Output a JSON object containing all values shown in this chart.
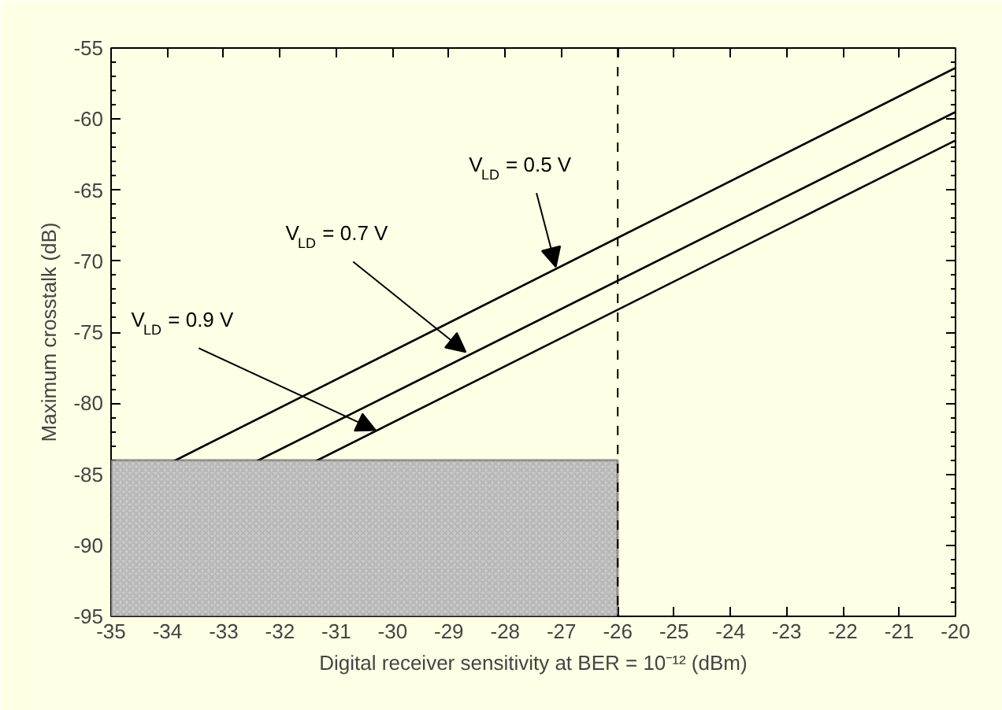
{
  "chart_data": {
    "type": "line",
    "xlabel": "Digital receiver sensitivity at BER = 10⁻¹² (dBm)",
    "ylabel": "Maximum crosstalk (dB)",
    "x": [
      -35,
      -20
    ],
    "series": [
      {
        "color": "#000000",
        "values": [
          -86.3,
          -56.4
        ]
      },
      {
        "color": "#000000",
        "values": [
          -89.2,
          -59.5
        ]
      },
      {
        "color": "#000000",
        "values": [
          -91.3,
          -61.5
        ]
      }
    ],
    "xlim": [
      -35,
      -20
    ],
    "xticks": [
      -35,
      -34,
      -33,
      -32,
      -31,
      -30,
      -29,
      -28,
      -27,
      -26,
      -25,
      -24,
      -23,
      -22,
      -21,
      -20
    ],
    "ylim": [
      -95,
      -55
    ],
    "yticks": [
      -95,
      -90,
      -85,
      -80,
      -75,
      -70,
      -65,
      -60,
      -55
    ],
    "ref_lines": [
      {
        "axis": "x",
        "value": -26,
        "line_style": "dashed",
        "color": "#000000"
      }
    ],
    "bands": [
      {
        "axis": "y",
        "from": -95,
        "to": -84,
        "color": "#c8c8c8"
      }
    ],
    "annotations": [
      {
        "text": "V$_{LD}$ = 0.5 V",
        "x": -27.1,
        "y": -70.4
      },
      {
        "text": "V$_{LD}$ = 0.7 V",
        "x": -28.7,
        "y": -76.4
      },
      {
        "text": "V$_{LD}$ = 0.9 V",
        "x": -30.3,
        "y": -81.9
      }
    ],
    "marker": "none",
    "line_style": "solid"
  }
}
